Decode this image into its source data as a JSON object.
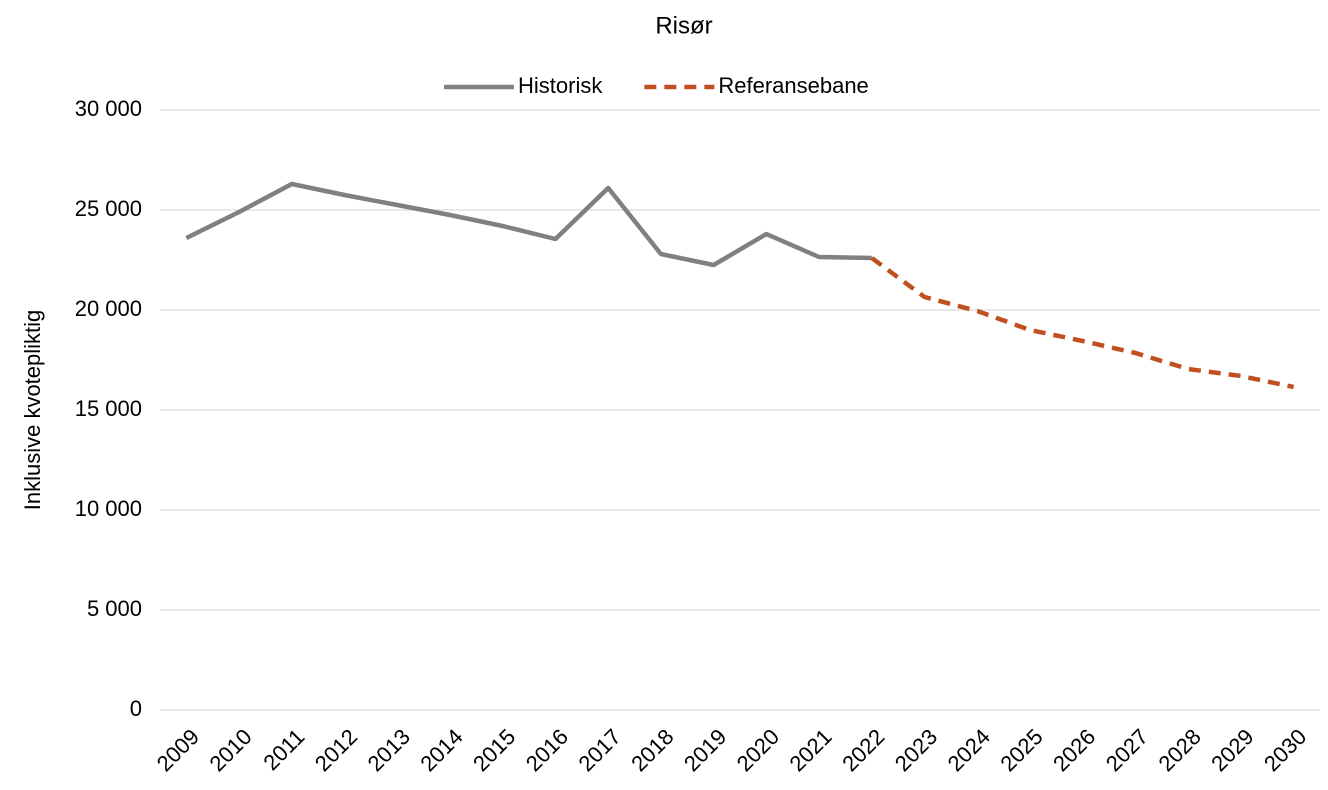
{
  "chart_data": {
    "type": "line",
    "title": "Risør",
    "y_label": "Inklusive kvotepliktig",
    "categories": [
      "2009",
      "2010",
      "2011",
      "2012",
      "2013",
      "2014",
      "2015",
      "2016",
      "2017",
      "2018",
      "2019",
      "2020",
      "2021",
      "2022",
      "2023",
      "2024",
      "2025",
      "2026",
      "2027",
      "2028",
      "2029",
      "2030"
    ],
    "series": [
      {
        "name": "Historisk",
        "color": "#808080",
        "dash": false,
        "values": [
          23600,
          24900,
          26300,
          25750,
          25250,
          24750,
          24200,
          23550,
          26100,
          22800,
          22250,
          23800,
          22650,
          22600,
          null,
          null,
          null,
          null,
          null,
          null,
          null,
          null
        ]
      },
      {
        "name": "Referansebane",
        "color": "#c0501f",
        "dash": true,
        "values": [
          null,
          null,
          null,
          null,
          null,
          null,
          null,
          null,
          null,
          null,
          null,
          null,
          null,
          22600,
          20650,
          19950,
          19000,
          18450,
          17850,
          17050,
          16700,
          16150
        ]
      }
    ],
    "ylim": [
      0,
      30000
    ],
    "yticks": [
      0,
      {
        "value": 5000,
        "label": "5 000"
      },
      {
        "value": 10000,
        "label": "10 000"
      },
      {
        "value": 15000,
        "label": "15 000"
      },
      {
        "value": 20000,
        "label": "20 000"
      },
      {
        "value": 25000,
        "label": "25 000"
      },
      {
        "value": 30000,
        "label": "30 000"
      }
    ],
    "grid": true,
    "legend": "top"
  }
}
